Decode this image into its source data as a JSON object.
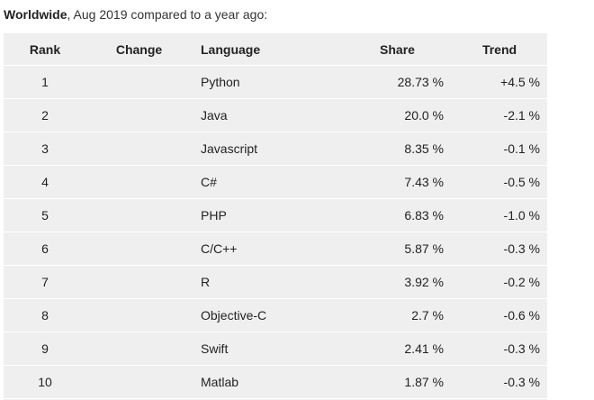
{
  "caption": {
    "bold": "Worldwide",
    "rest": ", Aug 2019 compared to a year ago:"
  },
  "table": {
    "headers": {
      "rank": "Rank",
      "change": "Change",
      "language": "Language",
      "share": "Share",
      "trend": "Trend"
    },
    "rows": [
      {
        "rank": "1",
        "change": "",
        "language": "Python",
        "share": "28.73 %",
        "trend": "+4.5 %"
      },
      {
        "rank": "2",
        "change": "",
        "language": "Java",
        "share": "20.0 %",
        "trend": "-2.1 %"
      },
      {
        "rank": "3",
        "change": "",
        "language": "Javascript",
        "share": "8.35 %",
        "trend": "-0.1 %"
      },
      {
        "rank": "4",
        "change": "",
        "language": "C#",
        "share": "7.43 %",
        "trend": "-0.5 %"
      },
      {
        "rank": "5",
        "change": "",
        "language": "PHP",
        "share": "6.83 %",
        "trend": "-1.0 %"
      },
      {
        "rank": "6",
        "change": "",
        "language": "C/C++",
        "share": "5.87 %",
        "trend": "-0.3 %"
      },
      {
        "rank": "7",
        "change": "",
        "language": "R",
        "share": "3.92 %",
        "trend": "-0.2 %"
      },
      {
        "rank": "8",
        "change": "",
        "language": "Objective-C",
        "share": "2.7 %",
        "trend": "-0.6 %"
      },
      {
        "rank": "9",
        "change": "",
        "language": "Swift",
        "share": "2.41 %",
        "trend": "-0.3 %"
      },
      {
        "rank": "10",
        "change": "",
        "language": "Matlab",
        "share": "1.87 %",
        "trend": "-0.3 %"
      }
    ]
  }
}
